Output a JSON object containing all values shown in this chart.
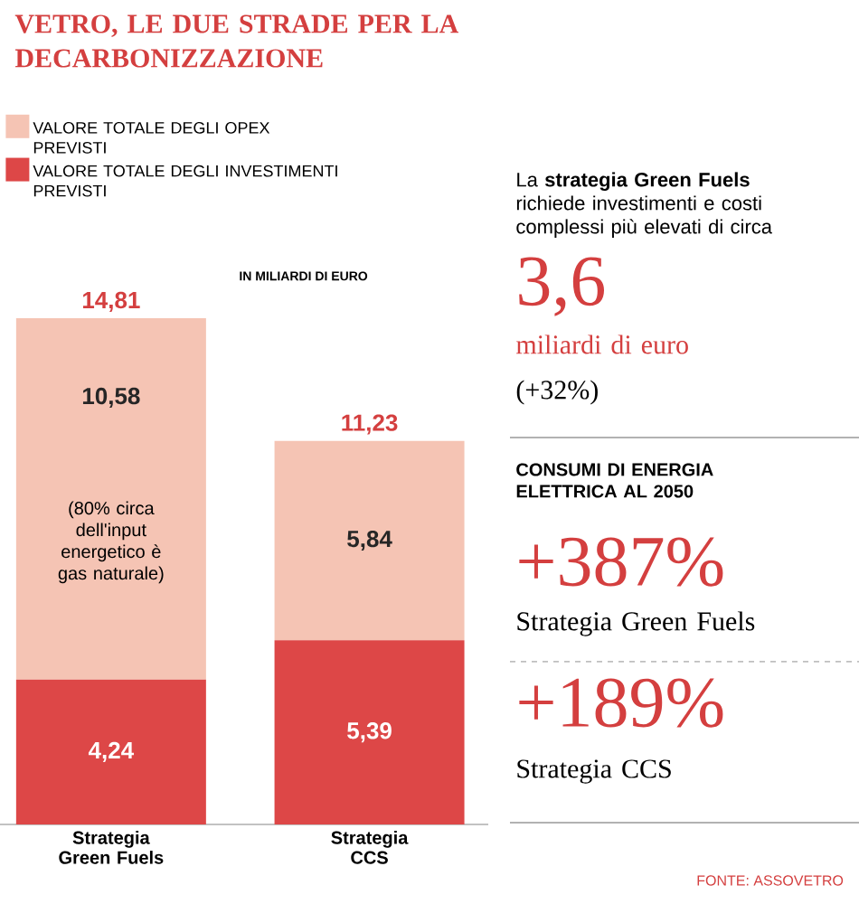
{
  "chart_data": [
    {
      "type": "bar",
      "stacked": true,
      "title": "VETRO, LE DUE STRADE PER LA DECARBONIZZAZIONE",
      "subtitle": "IN MILIARDI DI EURO",
      "categories": [
        "Strategia Green Fuels",
        "Strategia CCS"
      ],
      "series": [
        {
          "name": "VALORE TOTALE DEGLI INVESTIMENTI PREVISTI",
          "color": "#dd4747",
          "values": [
            4.24,
            5.39
          ],
          "value_labels": [
            "4,24",
            "5,39"
          ]
        },
        {
          "name": "VALORE TOTALE DEGLI OPEX PREVISTI",
          "color": "#f5c4b4",
          "values": [
            10.58,
            5.84
          ],
          "value_labels": [
            "10,58",
            "5,84"
          ]
        }
      ],
      "totals": [
        "14,81",
        "11,23"
      ],
      "legend": "top left",
      "annotations": [
        "(80% circa dell'input energetico è gas naturale)",
        "FONTE: ASSOVETRO"
      ]
    },
    {
      "type": "other",
      "annotations": [
        "La **strategia Green Fuels** richiede investimenti e costi complessi più elevati di circa",
        "3,6",
        "miliardi di euro",
        "(+32%)",
        "CONSUMI DI ENERGIA ELETTRICA AL 2050",
        "+387%",
        "Strategia Green Fuels",
        "+189%",
        "Strategia CCS"
      ]
    }
  ]
}
